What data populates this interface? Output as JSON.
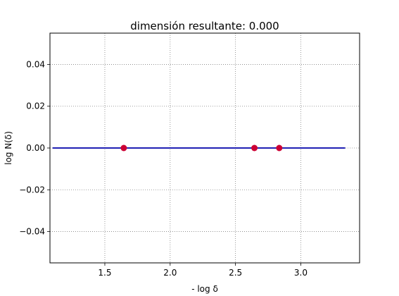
{
  "chart_data": {
    "type": "scatter",
    "title": "dimensión resultante: 0.000",
    "xlabel": "- log δ",
    "ylabel": "log N(δ)",
    "xlim": [
      1.08,
      3.45
    ],
    "ylim": [
      -0.055,
      0.055
    ],
    "xticks": [
      1.5,
      2.0,
      2.5,
      3.0
    ],
    "xtick_labels": [
      "1.5",
      "2.0",
      "2.5",
      "3.0"
    ],
    "yticks": [
      0.04,
      0.02,
      0.0,
      -0.02,
      -0.04
    ],
    "ytick_labels": [
      "0.04",
      "0.02",
      "0.00",
      "−0.02",
      "−0.04"
    ],
    "grid": true,
    "points": {
      "x": [
        1.645,
        2.645,
        2.835
      ],
      "y": [
        0.0,
        0.0,
        0.0
      ],
      "color": "#cc0033"
    },
    "fit_line": {
      "x": [
        1.1,
        3.34
      ],
      "y": [
        0.0,
        0.0
      ],
      "color": "#0000aa"
    }
  }
}
